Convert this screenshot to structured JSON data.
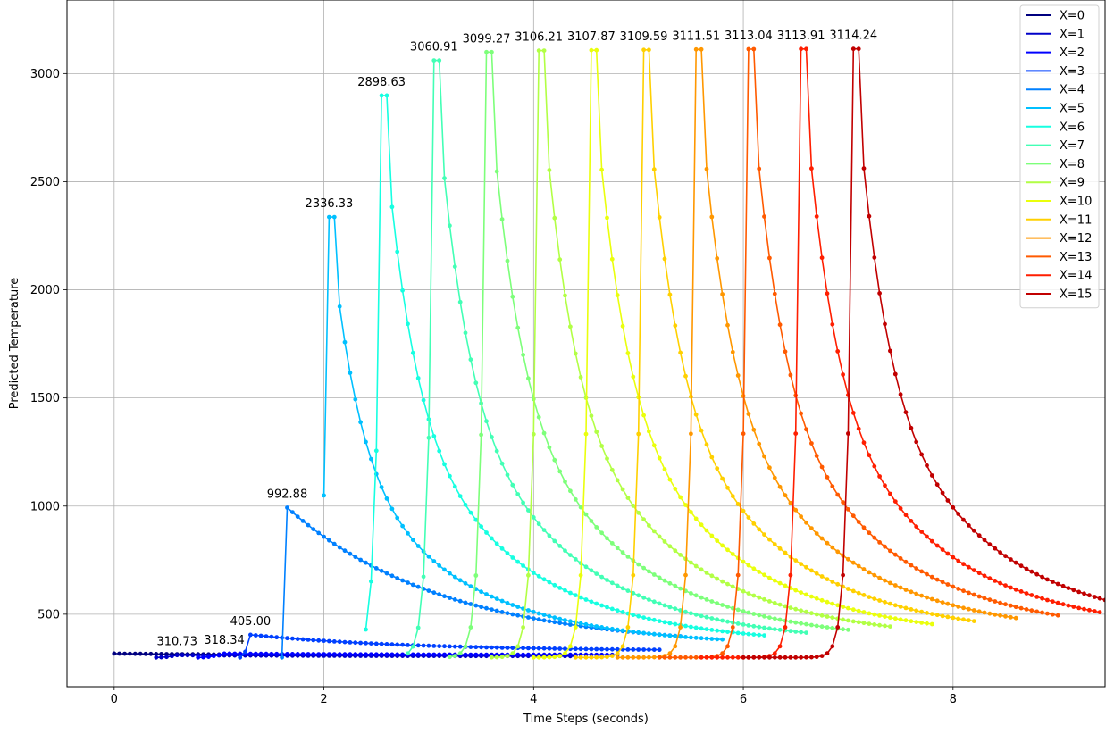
{
  "chart_data": {
    "type": "line",
    "title": "",
    "xlabel": "Time Steps (seconds)",
    "ylabel": "Predicted Temperature",
    "xlim": [
      -0.45,
      9.45
    ],
    "ylim": [
      165,
      3340
    ],
    "xticks": [
      0,
      2,
      4,
      6,
      8
    ],
    "yticks": [
      500,
      1000,
      1500,
      2000,
      2500,
      3000
    ],
    "grid": true,
    "legend_position": "top-right",
    "series": [
      {
        "name": "X=0",
        "color": "#00007f",
        "start": 0.0,
        "end": 4.0,
        "rise_end": 0.0,
        "base": 297,
        "peak": 318.0,
        "final": 310,
        "peak_label": ""
      },
      {
        "name": "X=1",
        "color": "#0000c8",
        "start": 0.4,
        "end": 4.4,
        "rise_end": 0.6,
        "base": 300,
        "peak": 310.73,
        "final": 306,
        "peak_label": "310.73"
      },
      {
        "name": "X=2",
        "color": "#0000ff",
        "start": 0.8,
        "end": 4.8,
        "rise_end": 1.05,
        "base": 300,
        "peak": 318.34,
        "final": 312,
        "peak_label": "318.34"
      },
      {
        "name": "X=3",
        "color": "#0040ff",
        "start": 1.2,
        "end": 5.2,
        "rise_end": 1.3,
        "base": 300,
        "peak": 405.0,
        "final": 330,
        "peak_label": "405.00"
      },
      {
        "name": "X=4",
        "color": "#0080ff",
        "start": 1.6,
        "end": 5.4,
        "rise_end": 1.65,
        "base": 300,
        "peak": 992.88,
        "final": 345,
        "peak_label": "992.88"
      },
      {
        "name": "X=5",
        "color": "#00c0ff",
        "start": 2.0,
        "end": 5.8,
        "rise_end": 2.05,
        "base": 300,
        "peak": 2336.33,
        "final": 352,
        "peak_label": "2336.33"
      },
      {
        "name": "X=6",
        "color": "#16ffe1",
        "start": 2.4,
        "end": 6.2,
        "rise_end": 2.55,
        "base": 300,
        "peak": 2898.63,
        "final": 357,
        "peak_label": "2898.63"
      },
      {
        "name": "X=7",
        "color": "#42ffb5",
        "start": 2.8,
        "end": 6.6,
        "rise_end": 3.05,
        "base": 300,
        "peak": 3060.91,
        "final": 362,
        "peak_label": "3060.91"
      },
      {
        "name": "X=8",
        "color": "#7dff7a",
        "start": 3.2,
        "end": 7.0,
        "rise_end": 3.55,
        "base": 300,
        "peak": 3099.27,
        "final": 370,
        "peak_label": "3099.27"
      },
      {
        "name": "X=9",
        "color": "#b2ff45",
        "start": 3.6,
        "end": 7.4,
        "rise_end": 4.05,
        "base": 300,
        "peak": 3106.21,
        "final": 380,
        "peak_label": "3106.21"
      },
      {
        "name": "X=10",
        "color": "#eaff0c",
        "start": 4.0,
        "end": 7.8,
        "rise_end": 4.55,
        "base": 300,
        "peak": 3107.87,
        "final": 385,
        "peak_label": "3107.87"
      },
      {
        "name": "X=11",
        "color": "#ffd000",
        "start": 4.4,
        "end": 8.2,
        "rise_end": 5.05,
        "base": 300,
        "peak": 3109.59,
        "final": 393,
        "peak_label": "3109.59"
      },
      {
        "name": "X=12",
        "color": "#ff9700",
        "start": 4.8,
        "end": 8.6,
        "rise_end": 5.55,
        "base": 300,
        "peak": 3111.51,
        "final": 400,
        "peak_label": "3111.51"
      },
      {
        "name": "X=13",
        "color": "#ff5a00",
        "start": 5.2,
        "end": 9.0,
        "rise_end": 6.05,
        "base": 300,
        "peak": 3113.04,
        "final": 405,
        "peak_label": "3113.04"
      },
      {
        "name": "X=14",
        "color": "#ff1e00",
        "start": 5.6,
        "end": 9.4,
        "rise_end": 6.55,
        "base": 300,
        "peak": 3113.91,
        "final": 412,
        "peak_label": "3113.91"
      },
      {
        "name": "X=15",
        "color": "#c10000",
        "start": 6.0,
        "end": 9.8,
        "rise_end": 7.05,
        "base": 300,
        "peak": 3114.24,
        "final": 420,
        "peak_label": "3114.24"
      }
    ]
  }
}
